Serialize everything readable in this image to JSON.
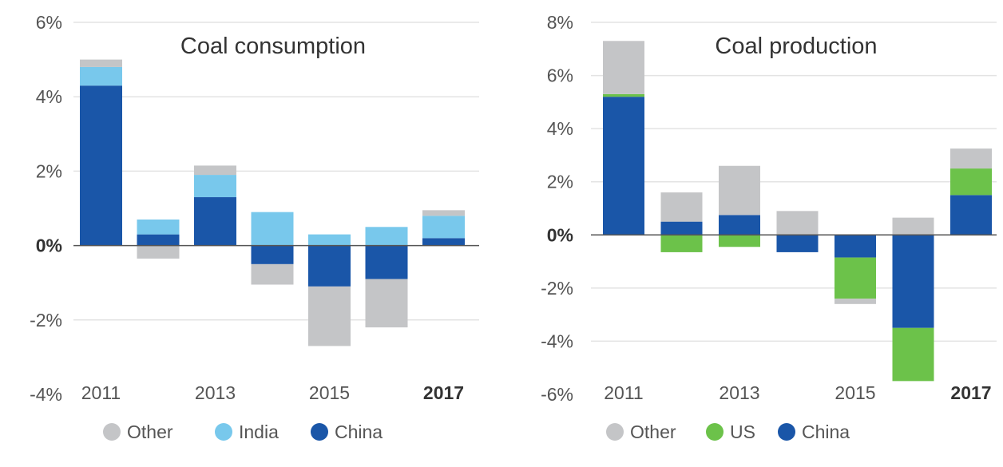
{
  "chart_data": [
    {
      "type": "bar",
      "stacked": true,
      "title": "Coal consumption",
      "categories": [
        "2011",
        "2012",
        "2013",
        "2014",
        "2015",
        "2016",
        "2017"
      ],
      "x_tick_labels": [
        "2011",
        "2013",
        "2015",
        "2017"
      ],
      "bold_tick": "2017",
      "y_tick_labels": [
        "6%",
        "4%",
        "2%",
        "0%",
        "-2%",
        "-4%"
      ],
      "ylim": [
        -4,
        6
      ],
      "unit": "%",
      "grid": true,
      "legend_position": "bottom",
      "series": [
        {
          "name": "China",
          "color": "#1a56a8",
          "values": [
            4.3,
            0.3,
            1.3,
            -0.5,
            -1.1,
            -0.9,
            0.2
          ]
        },
        {
          "name": "India",
          "color": "#78c8ec",
          "values": [
            0.5,
            0.4,
            0.6,
            0.9,
            0.3,
            0.5,
            0.6
          ]
        },
        {
          "name": "Other",
          "color": "#c4c5c7",
          "values": [
            0.2,
            -0.35,
            0.25,
            -0.55,
            -1.6,
            -1.3,
            0.15
          ]
        }
      ],
      "legend": [
        {
          "name": "Other",
          "color": "#c4c5c7"
        },
        {
          "name": "India",
          "color": "#78c8ec"
        },
        {
          "name": "China",
          "color": "#1a56a8"
        }
      ]
    },
    {
      "type": "bar",
      "stacked": true,
      "title": "Coal production",
      "categories": [
        "2011",
        "2012",
        "2013",
        "2014",
        "2015",
        "2016",
        "2017"
      ],
      "x_tick_labels": [
        "2011",
        "2013",
        "2015",
        "2017"
      ],
      "bold_tick": "2017",
      "y_tick_labels": [
        "8%",
        "6%",
        "4%",
        "2%",
        "0%",
        "-2%",
        "-4%",
        "-6%"
      ],
      "ylim": [
        -6,
        8
      ],
      "unit": "%",
      "grid": true,
      "legend_position": "bottom",
      "series": [
        {
          "name": "China",
          "color": "#1a56a8",
          "values": [
            5.2,
            0.5,
            0.75,
            -0.65,
            -0.85,
            -3.5,
            1.5
          ]
        },
        {
          "name": "US",
          "color": "#6cc24a",
          "values": [
            0.1,
            -0.65,
            -0.45,
            0.0,
            -1.55,
            -2.0,
            1.0
          ]
        },
        {
          "name": "Other",
          "color": "#c4c5c7",
          "values": [
            2.0,
            1.1,
            1.85,
            0.9,
            -0.2,
            0.65,
            0.75
          ]
        }
      ],
      "legend": [
        {
          "name": "Other",
          "color": "#c4c5c7"
        },
        {
          "name": "US",
          "color": "#6cc24a"
        },
        {
          "name": "China",
          "color": "#1a56a8"
        }
      ]
    }
  ]
}
